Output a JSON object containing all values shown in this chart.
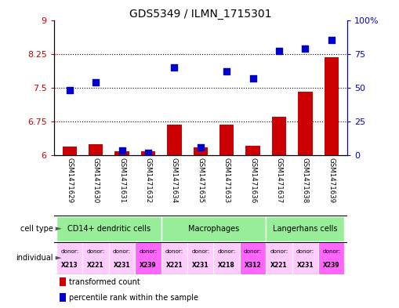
{
  "title": "GDS5349 / ILMN_1715301",
  "samples": [
    "GSM1471629",
    "GSM1471630",
    "GSM1471631",
    "GSM1471632",
    "GSM1471634",
    "GSM1471635",
    "GSM1471633",
    "GSM1471636",
    "GSM1471637",
    "GSM1471638",
    "GSM1471639"
  ],
  "transformed_count": [
    6.2,
    6.25,
    6.1,
    6.1,
    6.68,
    6.18,
    6.68,
    6.22,
    6.85,
    7.42,
    8.18
  ],
  "percentile_rank": [
    48,
    54,
    4,
    2,
    65,
    6,
    62,
    57,
    77,
    79,
    85
  ],
  "ylim_left": [
    6.0,
    9.0
  ],
  "ylim_right": [
    0,
    100
  ],
  "yticks_left": [
    6.0,
    6.75,
    7.5,
    8.25,
    9.0
  ],
  "ytick_labels_left": [
    "6",
    "6.75",
    "7.5",
    "8.25",
    "9"
  ],
  "yticks_right": [
    0,
    25,
    50,
    75,
    100
  ],
  "ytick_labels_right": [
    "0",
    "25",
    "50",
    "75",
    "100%"
  ],
  "hlines": [
    6.75,
    7.5,
    8.25
  ],
  "cell_type_groups": [
    {
      "label": "CD14+ dendritic cells",
      "start": 0,
      "end": 3,
      "color": "#98ee98"
    },
    {
      "label": "Macrophages",
      "start": 4,
      "end": 7,
      "color": "#98ee98"
    },
    {
      "label": "Langerhans cells",
      "start": 8,
      "end": 10,
      "color": "#98ee98"
    }
  ],
  "donors": [
    "X213",
    "X221",
    "X231",
    "X239",
    "X221",
    "X231",
    "X218",
    "X312",
    "X221",
    "X231",
    "X239"
  ],
  "donor_colors": [
    "#ffccff",
    "#ffccff",
    "#ffccff",
    "#ff66ff",
    "#ffccff",
    "#ffccff",
    "#ffccff",
    "#ff66ff",
    "#ffccff",
    "#ffccff",
    "#ff66ff"
  ],
  "bar_color": "#cc0000",
  "scatter_color": "#0000cc",
  "background_color": "#ffffff",
  "tick_color_left": "#cc0000",
  "tick_color_right": "#0000cc",
  "bar_width": 0.55,
  "scatter_size": 28,
  "xtick_bg": "#c0c0c0",
  "legend_marker_red": "transformed count",
  "legend_marker_blue": "percentile rank within the sample",
  "xlim": [
    -0.6,
    10.6
  ]
}
